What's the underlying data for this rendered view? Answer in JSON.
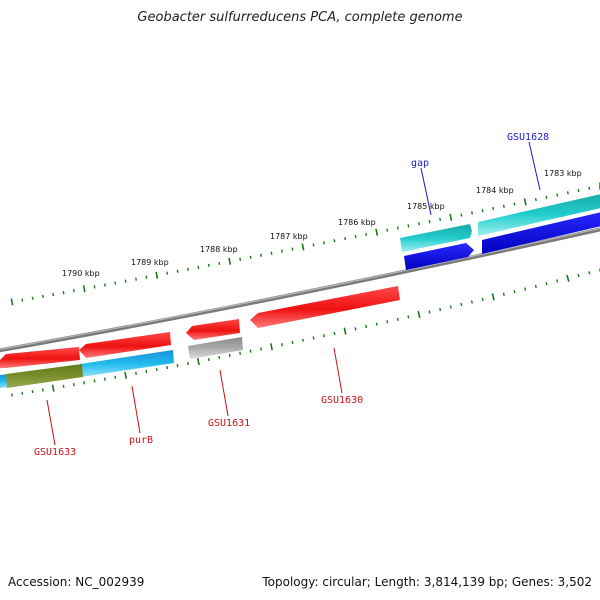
{
  "title": "Geobacter sulfurreducens PCA, complete genome",
  "footer": {
    "accession": "Accession: NC_002939",
    "summary": "Topology: circular; Length: 3,814,139 bp; Genes: 3,502"
  },
  "colors": {
    "backbone": "#8a8a8a",
    "tick": "#1a7a1a",
    "forward_label": "#1a1acc",
    "reverse_label": "#cc1111"
  },
  "ruler_labels": [
    {
      "text": "1790 kbp",
      "kbp": 1790
    },
    {
      "text": "1789 kbp",
      "kbp": 1789
    },
    {
      "text": "1788 kbp",
      "kbp": 1788
    },
    {
      "text": "1787 kbp",
      "kbp": 1787
    },
    {
      "text": "1786 kbp",
      "kbp": 1786
    },
    {
      "text": "1785 kbp",
      "kbp": 1785
    },
    {
      "text": "1784 kbp",
      "kbp": 1784
    },
    {
      "text": "1783 kbp",
      "kbp": 1783
    }
  ],
  "genes": [
    {
      "name": "GSU1628",
      "strand": "forward",
      "color": "#1a1ae0"
    },
    {
      "name": "gap",
      "strand": "forward",
      "color": "#1a1ae0"
    },
    {
      "name": "GSU1630",
      "strand": "reverse",
      "color": "#ee1a1a"
    },
    {
      "name": "GSU1631",
      "strand": "reverse",
      "color": "#aaaaaa"
    },
    {
      "name": "purB",
      "strand": "reverse",
      "color": "#ee1a1a"
    },
    {
      "name": "GSU1633",
      "strand": "reverse",
      "color": "#ee1a1a"
    }
  ]
}
